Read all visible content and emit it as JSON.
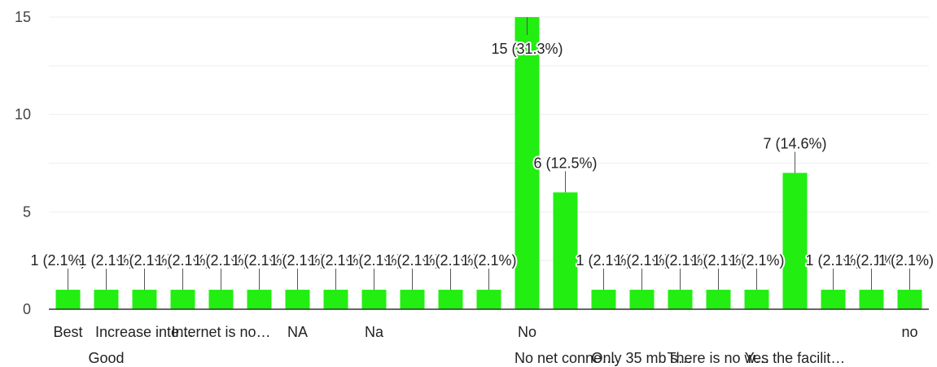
{
  "chart_data": {
    "type": "bar",
    "title": "",
    "xlabel": "",
    "ylabel": "",
    "ylim": [
      0,
      15
    ],
    "yticks": [
      0,
      5,
      10,
      15
    ],
    "grid": true,
    "legend": "none",
    "colors": {
      "bar": "#22ee11",
      "grid": "#eeeeee",
      "axis": "#333333",
      "leader": "#555555"
    },
    "categories": [
      "Best",
      "Good",
      "Increase inte…",
      "",
      "Internet is no…",
      "",
      "NA",
      "",
      "Na",
      "",
      "",
      "",
      "No",
      "No net conne…",
      "",
      "Only 35 mb s…",
      "",
      "There is no w…",
      "",
      "Yes the facilit…",
      "",
      "",
      "no"
    ],
    "values": [
      1,
      1,
      1,
      1,
      1,
      1,
      1,
      1,
      1,
      1,
      1,
      1,
      15,
      6,
      1,
      1,
      1,
      1,
      1,
      7,
      1,
      1,
      1
    ],
    "data_labels": [
      "1 (2.1%)",
      "1 (2.1%)",
      "1 (2.1%)",
      "1 (2.1%)",
      "1 (2.1%)",
      "1 (2.1%)",
      "1 (2.1%)",
      "1 (2.1%)",
      "1 (2.1%)",
      "1 (2.1%)",
      "1 (2.1%)",
      "1 (2.1%)",
      "15 (31.3%)",
      "6 (12.5%)",
      "1 (2.1%)",
      "1 (2.1%)",
      "1 (2.1%)",
      "1 (2.1%)",
      "1 (2.1%)",
      "7 (14.6%)",
      "1 (2.1%)",
      "1 (2.1%)",
      "1 (2.1%)"
    ]
  }
}
